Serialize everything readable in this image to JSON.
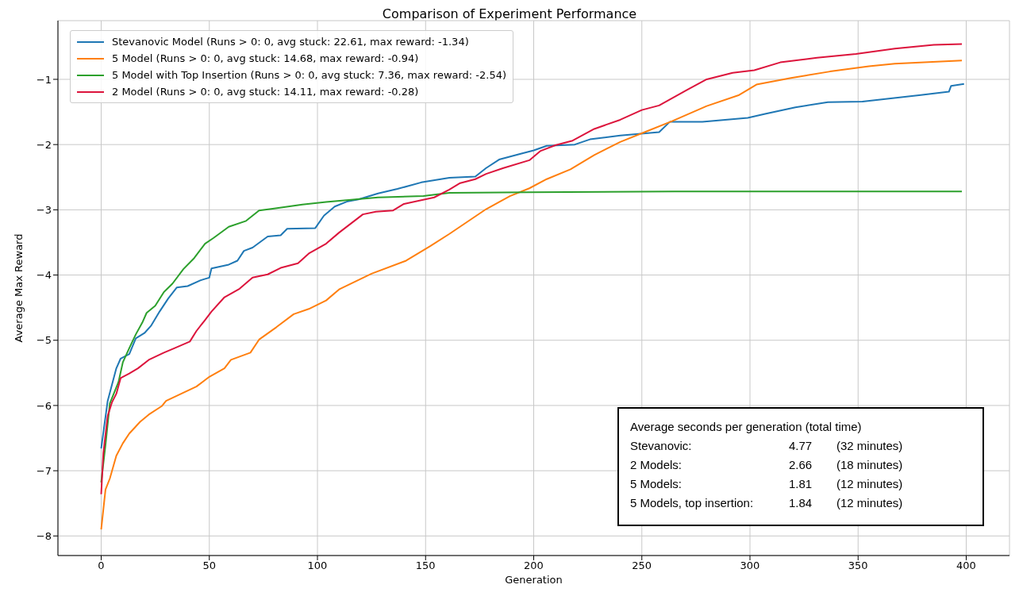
{
  "chart_data": {
    "type": "line",
    "title": "Comparison of Experiment Performance",
    "xlabel": "Generation",
    "ylabel": "Average Max Reward",
    "xlim": [
      -20,
      420
    ],
    "ylim": [
      -8.3,
      -0.1
    ],
    "xticks": [
      0,
      50,
      100,
      150,
      200,
      250,
      300,
      350,
      400
    ],
    "yticks": [
      -8,
      -7,
      -6,
      -5,
      -4,
      -3,
      -2,
      -1
    ],
    "grid": true,
    "legend": "top left",
    "marker": "none",
    "line_style": "solid",
    "series": [
      {
        "name": "Stevanovic Model (Runs > 0: 0, avg stuck: 22.61, max reward: -1.34)",
        "color": "#1f77b4",
        "x": [
          0,
          3,
          7,
          9,
          13,
          16,
          20,
          23,
          27,
          31,
          35,
          40,
          46,
          50,
          51,
          59,
          63,
          66,
          70,
          77,
          83,
          86,
          99,
          103,
          108,
          114,
          119,
          128,
          137,
          148,
          161,
          173,
          178,
          184,
          194,
          200,
          206,
          219,
          226,
          240,
          258,
          263,
          278,
          299,
          307,
          321,
          336,
          352,
          379,
          392,
          393,
          399
        ],
        "values": [
          -6.66,
          -5.93,
          -5.43,
          -5.28,
          -5.21,
          -4.97,
          -4.89,
          -4.78,
          -4.56,
          -4.36,
          -4.19,
          -4.17,
          -4.08,
          -4.04,
          -3.9,
          -3.84,
          -3.78,
          -3.63,
          -3.58,
          -3.41,
          -3.39,
          -3.29,
          -3.28,
          -3.09,
          -2.95,
          -2.87,
          -2.84,
          -2.75,
          -2.68,
          -2.58,
          -2.51,
          -2.49,
          -2.36,
          -2.23,
          -2.14,
          -2.09,
          -2.02,
          -2,
          -1.92,
          -1.86,
          -1.81,
          -1.65,
          -1.65,
          -1.59,
          -1.53,
          -1.43,
          -1.35,
          -1.34,
          -1.24,
          -1.19,
          -1.1,
          -1.07
        ]
      },
      {
        "name": "5 Model (Runs > 0: 0, avg stuck: 14.68, max reward: -0.94)",
        "color": "#ff7f0e",
        "x": [
          0,
          2,
          4,
          7,
          10,
          13,
          18,
          22,
          28,
          30,
          37,
          44,
          50,
          57,
          60,
          69,
          73,
          81,
          89,
          96,
          104,
          110,
          125,
          141,
          152,
          161,
          178,
          189,
          198,
          206,
          217,
          228,
          240,
          252,
          264,
          280,
          295,
          303,
          319,
          337,
          355,
          367,
          398
        ],
        "values": [
          -7.9,
          -7.29,
          -7.12,
          -6.77,
          -6.58,
          -6.43,
          -6.25,
          -6.14,
          -6.01,
          -5.93,
          -5.82,
          -5.71,
          -5.56,
          -5.43,
          -5.3,
          -5.19,
          -4.99,
          -4.8,
          -4.6,
          -4.52,
          -4.39,
          -4.22,
          -3.98,
          -3.78,
          -3.56,
          -3.37,
          -2.99,
          -2.79,
          -2.67,
          -2.53,
          -2.38,
          -2.16,
          -1.96,
          -1.8,
          -1.64,
          -1.41,
          -1.24,
          -1.08,
          -0.98,
          -0.88,
          -0.8,
          -0.76,
          -0.71
        ]
      },
      {
        "name": "5 Model with Top Insertion (Runs > 0: 0, avg stuck: 7.36, max reward: -2.54)",
        "color": "#2ca02c",
        "x": [
          0,
          2,
          4,
          8,
          10,
          13,
          16,
          19,
          21,
          25,
          29,
          33,
          38,
          43,
          48,
          52,
          59,
          67,
          73,
          80,
          93,
          104,
          128,
          149,
          161,
          198,
          265,
          398
        ],
        "values": [
          -7.18,
          -6.6,
          -5.97,
          -5.64,
          -5.34,
          -5.12,
          -4.91,
          -4.73,
          -4.58,
          -4.47,
          -4.26,
          -4.13,
          -3.91,
          -3.74,
          -3.52,
          -3.43,
          -3.26,
          -3.17,
          -3.01,
          -2.98,
          -2.92,
          -2.88,
          -2.81,
          -2.79,
          -2.74,
          -2.73,
          -2.72,
          -2.72
        ]
      },
      {
        "name": "2 Model (Runs > 0: 0, avg stuck: 14.11, max reward: -0.28)",
        "color": "#dc143c",
        "x": [
          0,
          1,
          3,
          5,
          7,
          9,
          13,
          17,
          22,
          29,
          34,
          41,
          44,
          48,
          51,
          57,
          64,
          70,
          77,
          83,
          91,
          96,
          104,
          110,
          121,
          127,
          135,
          140,
          154,
          161,
          166,
          173,
          178,
          186,
          198,
          203,
          210,
          218,
          228,
          240,
          250,
          258,
          271,
          280,
          292,
          302,
          314,
          331,
          349,
          367,
          385,
          398
        ],
        "values": [
          -7.36,
          -6.73,
          -6.16,
          -5.95,
          -5.82,
          -5.58,
          -5.51,
          -5.43,
          -5.3,
          -5.19,
          -5.12,
          -5.02,
          -4.86,
          -4.69,
          -4.56,
          -4.34,
          -4.21,
          -4.04,
          -3.99,
          -3.89,
          -3.82,
          -3.67,
          -3.52,
          -3.35,
          -3.07,
          -3.03,
          -3.01,
          -2.91,
          -2.81,
          -2.69,
          -2.59,
          -2.53,
          -2.45,
          -2.36,
          -2.24,
          -2.1,
          -2.01,
          -1.94,
          -1.76,
          -1.62,
          -1.47,
          -1.4,
          -1.16,
          -1,
          -0.9,
          -0.86,
          -0.74,
          -0.67,
          -0.61,
          -0.53,
          -0.47,
          -0.46
        ]
      }
    ],
    "annotations": [
      "Average seconds per generation (total time)",
      "Stevanovic:\t4.77\t(32 minutes)",
      "2 Models:\t2.66\t(18 minutes)",
      "5 Models:\t1.81\t(12 minutes)",
      "5 Models, top insertion:\t1.84\t(12 minutes)"
    ]
  }
}
